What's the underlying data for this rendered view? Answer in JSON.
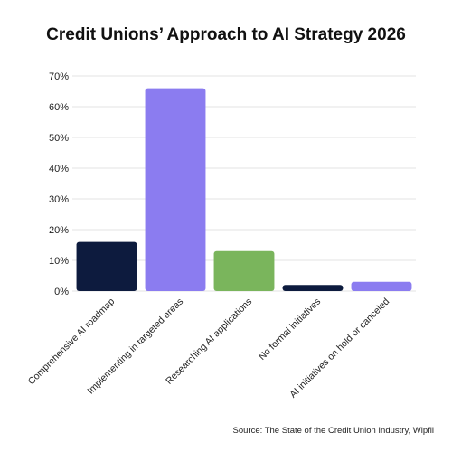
{
  "chart_data": {
    "type": "bar",
    "title": "Credit Unions’ Approach to AI Strategy 2026",
    "categories": [
      "Comprehensive AI roadmap",
      "Implementing in targeted areas",
      "Researching AI applications",
      "No formal initiatives",
      "AI initiatives on hold or canceled"
    ],
    "values": [
      16,
      66,
      13,
      2,
      3
    ],
    "colors": [
      "#0d1b3e",
      "#8b7cf0",
      "#7ab55c",
      "#0d1b3e",
      "#8b7cf0"
    ],
    "ylim": [
      0,
      70
    ],
    "yticks": [
      "0%",
      "10%",
      "20%",
      "30%",
      "40%",
      "50%",
      "60%",
      "70%"
    ],
    "grid": true,
    "xlabel": "",
    "ylabel": "",
    "source": "Source: The State of the Credit Union Industry, Wipfli"
  }
}
